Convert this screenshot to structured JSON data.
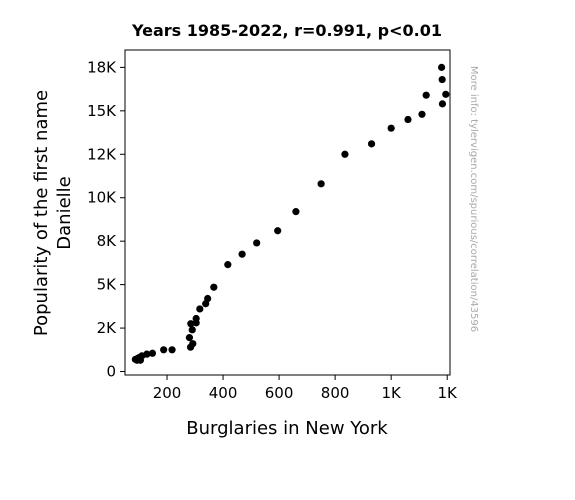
{
  "chart_data": {
    "type": "scatter",
    "title": "Years 1985-2022, r=0.991, p<0.01",
    "xlabel": "Burglaries in New York",
    "ylabel": "Popularity of the first name Danielle",
    "watermark": "More info: tylervigen.com/spurious/correlation/43596",
    "xlim": [
      50,
      1210
    ],
    "ylim": [
      -200,
      18500
    ],
    "x_ticks": [
      200,
      400,
      600,
      800,
      1000,
      1200
    ],
    "x_tick_labels": [
      "200",
      "400",
      "600",
      "800",
      "1K",
      "1K"
    ],
    "y_ticks": [
      0,
      2500,
      5000,
      7500,
      10000,
      12500,
      15000,
      17500
    ],
    "y_tick_labels": [
      "0",
      "2K",
      "5K",
      "8K",
      "10K",
      "12K",
      "15K",
      "18K"
    ],
    "grid": false,
    "marker_color": "#000000",
    "points": [
      {
        "x": 1180,
        "y": 17500
      },
      {
        "x": 1182,
        "y": 16800
      },
      {
        "x": 1195,
        "y": 15950
      },
      {
        "x": 1125,
        "y": 15900
      },
      {
        "x": 1183,
        "y": 15400
      },
      {
        "x": 1110,
        "y": 14800
      },
      {
        "x": 1060,
        "y": 14500
      },
      {
        "x": 1000,
        "y": 14000
      },
      {
        "x": 930,
        "y": 13100
      },
      {
        "x": 835,
        "y": 12500
      },
      {
        "x": 750,
        "y": 10800
      },
      {
        "x": 660,
        "y": 9200
      },
      {
        "x": 595,
        "y": 8100
      },
      {
        "x": 520,
        "y": 7400
      },
      {
        "x": 468,
        "y": 6750
      },
      {
        "x": 417,
        "y": 6150
      },
      {
        "x": 367,
        "y": 4850
      },
      {
        "x": 345,
        "y": 4200
      },
      {
        "x": 338,
        "y": 3900
      },
      {
        "x": 317,
        "y": 3600
      },
      {
        "x": 304,
        "y": 3050
      },
      {
        "x": 304,
        "y": 2800
      },
      {
        "x": 285,
        "y": 2750
      },
      {
        "x": 290,
        "y": 2400
      },
      {
        "x": 280,
        "y": 1950
      },
      {
        "x": 292,
        "y": 1600
      },
      {
        "x": 284,
        "y": 1400
      },
      {
        "x": 218,
        "y": 1250
      },
      {
        "x": 188,
        "y": 1250
      },
      {
        "x": 148,
        "y": 1050
      },
      {
        "x": 128,
        "y": 1000
      },
      {
        "x": 110,
        "y": 900
      },
      {
        "x": 100,
        "y": 800
      },
      {
        "x": 95,
        "y": 750
      },
      {
        "x": 87,
        "y": 700
      },
      {
        "x": 93,
        "y": 650
      },
      {
        "x": 105,
        "y": 650
      },
      {
        "x": 98,
        "y": 700
      }
    ]
  }
}
